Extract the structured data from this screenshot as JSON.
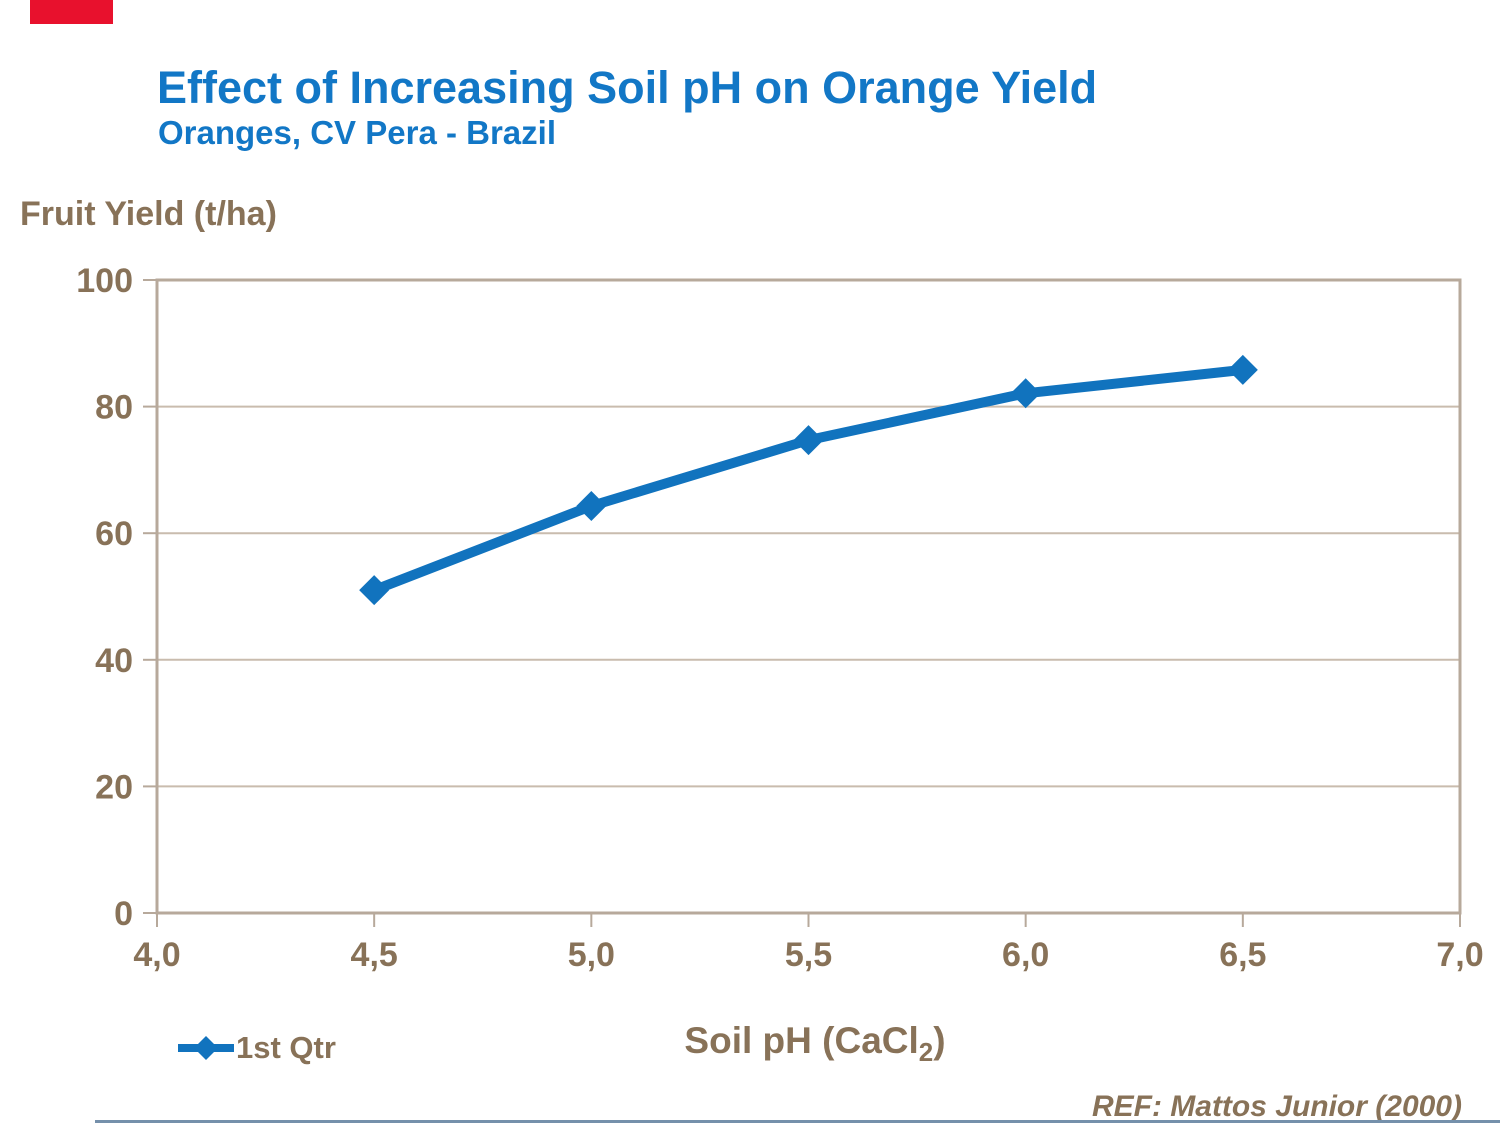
{
  "page": {
    "title": "Effect of Increasing Soil pH on Orange Yield",
    "subtitle": "Oranges, CV Pera - Brazil",
    "reference": "REF: Mattos Junior (2000)"
  },
  "colors": {
    "title_blue": "#1277c6",
    "line_blue": "#1173be",
    "text_brown": "#887258",
    "axis_tan": "#b7a99b",
    "grid_tan": "#c9bcae",
    "red_bar": "#e8112d",
    "bottom_rule": "#7590ab"
  },
  "legend": {
    "label": "1st Qtr"
  },
  "xaxis_title": {
    "prefix": "Soil pH (CaCl",
    "sub": "2",
    "suffix": ")"
  },
  "chart_data": {
    "type": "line",
    "title": "Effect of Increasing Soil pH on Orange Yield",
    "subtitle": "Oranges, CV Pera - Brazil",
    "x": [
      4.5,
      5.0,
      5.5,
      6.0,
      6.5
    ],
    "series": [
      {
        "name": "1st Qtr",
        "values": [
          51,
          64.3,
          74.7,
          82.1,
          85.8
        ]
      }
    ],
    "xlabel": "Soil pH (CaCl2)",
    "ylabel": "Fruit Yield (t/ha)",
    "xlim": [
      4.0,
      7.0
    ],
    "ylim": [
      0,
      100
    ],
    "x_tick_labels": [
      "4,0",
      "4,5",
      "5,0",
      "5,5",
      "6,0",
      "6,5",
      "7,0"
    ],
    "x_tick_values": [
      4.0,
      4.5,
      5.0,
      5.5,
      6.0,
      6.5,
      7.0
    ],
    "y_tick_labels": [
      "0",
      "20",
      "40",
      "60",
      "80",
      "100"
    ],
    "y_tick_values": [
      0,
      20,
      40,
      60,
      80,
      100
    ],
    "grid": "horizontal gridlines at y=20,40,60,80",
    "legend_position": "bottom-left",
    "marker": "diamond",
    "annotation": "REF: Mattos Junior (2000)"
  }
}
